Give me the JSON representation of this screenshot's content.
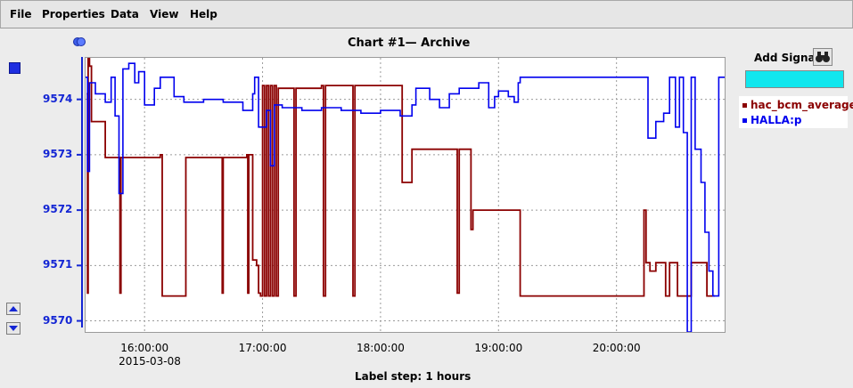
{
  "menubar": {
    "items": [
      {
        "label": "File"
      },
      {
        "label": "Properties"
      },
      {
        "label": "Data"
      },
      {
        "label": "View"
      },
      {
        "label": "Help"
      }
    ]
  },
  "chart": {
    "title": "Chart #1— Archive"
  },
  "right_panel": {
    "add_signal_label": "Add Signal",
    "signal_input_value": ""
  },
  "colors": {
    "hac_bcm_average": "#8b0000",
    "halla_p": "#0000ee",
    "axis": "#1426d4",
    "input_bg": "#11e7ee"
  },
  "chart_data": {
    "type": "line",
    "title": "Chart #1— Archive",
    "xlabel": "Label step: 1 hours",
    "x_tick_labels": [
      "16:00:00",
      "17:00:00",
      "18:00:00",
      "19:00:00",
      "20:00:00"
    ],
    "x_date_label": "2015-03-08",
    "y_tick_labels": [
      "9570",
      "9571",
      "9572",
      "9573",
      "9574"
    ],
    "xlim": [
      "15:30:00",
      "20:55:00"
    ],
    "ylim": [
      9569.8,
      9574.75
    ],
    "grid": true,
    "legend_position": "right",
    "series": [
      {
        "name": "hac_bcm_average",
        "points": [
          [
            "15:30:30",
            9574.1
          ],
          [
            "15:31:00",
            9570.5
          ],
          [
            "15:31:20",
            9574.75
          ],
          [
            "15:32:00",
            9574.6
          ],
          [
            "15:33:00",
            9573.6
          ],
          [
            "15:38:00",
            9573.6
          ],
          [
            "15:40:00",
            9572.95
          ],
          [
            "15:47:00",
            9572.95
          ],
          [
            "15:47:30",
            9570.5
          ],
          [
            "15:48:00",
            9572.95
          ],
          [
            "16:08:00",
            9573.0
          ],
          [
            "16:09:00",
            9570.45
          ],
          [
            "16:20:00",
            9570.45
          ],
          [
            "16:21:00",
            9572.95
          ],
          [
            "16:39:00",
            9572.95
          ],
          [
            "16:39:30",
            9570.5
          ],
          [
            "16:40:00",
            9572.95
          ],
          [
            "16:52:00",
            9573.0
          ],
          [
            "16:52:30",
            9570.5
          ],
          [
            "16:53:00",
            9573.0
          ],
          [
            "16:54:00",
            9573.0
          ],
          [
            "16:55:00",
            9571.1
          ],
          [
            "16:57:00",
            9571.0
          ],
          [
            "16:58:00",
            9570.5
          ],
          [
            "16:59:00",
            9570.45
          ],
          [
            "17:00:00",
            9574.25
          ],
          [
            "17:01:00",
            9570.45
          ],
          [
            "17:02:00",
            9574.25
          ],
          [
            "17:03:00",
            9570.45
          ],
          [
            "17:04:00",
            9574.25
          ],
          [
            "17:05:00",
            9570.45
          ],
          [
            "17:06:00",
            9574.25
          ],
          [
            "17:07:00",
            9570.45
          ],
          [
            "17:08:00",
            9574.2
          ],
          [
            "17:15:00",
            9574.2
          ],
          [
            "17:16:00",
            9570.45
          ],
          [
            "17:17:00",
            9574.2
          ],
          [
            "17:30:00",
            9574.25
          ],
          [
            "17:31:00",
            9570.45
          ],
          [
            "17:32:00",
            9574.25
          ],
          [
            "17:45:00",
            9574.25
          ],
          [
            "17:46:00",
            9570.45
          ],
          [
            "17:47:00",
            9574.25
          ],
          [
            "18:10:00",
            9574.25
          ],
          [
            "18:11:00",
            9572.5
          ],
          [
            "18:15:00",
            9572.5
          ],
          [
            "18:16:00",
            9573.1
          ],
          [
            "18:38:00",
            9573.1
          ],
          [
            "18:39:00",
            9570.5
          ],
          [
            "18:40:00",
            9573.1
          ],
          [
            "18:45:00",
            9573.1
          ],
          [
            "18:46:00",
            9571.65
          ],
          [
            "18:47:00",
            9572.0
          ],
          [
            "19:10:00",
            9572.0
          ],
          [
            "19:11:00",
            9570.45
          ],
          [
            "20:13:00",
            9570.45
          ],
          [
            "20:14:00",
            9572.0
          ],
          [
            "20:15:00",
            9571.05
          ],
          [
            "20:17:00",
            9570.9
          ],
          [
            "20:20:00",
            9571.05
          ],
          [
            "20:24:00",
            9571.05
          ],
          [
            "20:25:00",
            9570.45
          ],
          [
            "20:27:00",
            9571.05
          ],
          [
            "20:30:00",
            9571.05
          ],
          [
            "20:31:00",
            9570.45
          ],
          [
            "20:37:00",
            9570.45
          ],
          [
            "20:38:00",
            9571.05
          ],
          [
            "20:45:00",
            9571.05
          ],
          [
            "20:46:00",
            9570.45
          ],
          [
            "20:50:00",
            9570.45
          ]
        ]
      },
      {
        "name": "HALLA:p",
        "points": [
          [
            "15:30:00",
            9574.4
          ],
          [
            "15:31:00",
            9572.7
          ],
          [
            "15:32:00",
            9574.3
          ],
          [
            "15:35:00",
            9574.1
          ],
          [
            "15:40:00",
            9573.95
          ],
          [
            "15:43:00",
            9574.4
          ],
          [
            "15:45:00",
            9573.7
          ],
          [
            "15:47:00",
            9572.3
          ],
          [
            "15:49:00",
            9574.55
          ],
          [
            "15:52:00",
            9574.65
          ],
          [
            "15:55:00",
            9574.3
          ],
          [
            "15:57:00",
            9574.5
          ],
          [
            "16:00:00",
            9573.9
          ],
          [
            "16:05:00",
            9574.2
          ],
          [
            "16:08:00",
            9574.4
          ],
          [
            "16:14:00",
            9574.4
          ],
          [
            "16:15:00",
            9574.05
          ],
          [
            "16:20:00",
            9573.95
          ],
          [
            "16:30:00",
            9574.0
          ],
          [
            "16:40:00",
            9573.95
          ],
          [
            "16:50:00",
            9573.8
          ],
          [
            "16:55:00",
            9574.1
          ],
          [
            "16:56:00",
            9574.4
          ],
          [
            "16:58:00",
            9573.5
          ],
          [
            "17:02:00",
            9573.8
          ],
          [
            "17:04:00",
            9572.8
          ],
          [
            "17:06:00",
            9573.9
          ],
          [
            "17:10:00",
            9573.85
          ],
          [
            "17:20:00",
            9573.8
          ],
          [
            "17:30:00",
            9573.85
          ],
          [
            "17:40:00",
            9573.8
          ],
          [
            "17:50:00",
            9573.75
          ],
          [
            "18:00:00",
            9573.8
          ],
          [
            "18:10:00",
            9573.7
          ],
          [
            "18:16:00",
            9573.9
          ],
          [
            "18:18:00",
            9574.2
          ],
          [
            "18:22:00",
            9574.2
          ],
          [
            "18:25:00",
            9574.0
          ],
          [
            "18:30:00",
            9573.85
          ],
          [
            "18:35:00",
            9574.1
          ],
          [
            "18:40:00",
            9574.2
          ],
          [
            "18:50:00",
            9574.3
          ],
          [
            "18:55:00",
            9573.85
          ],
          [
            "18:58:00",
            9574.05
          ],
          [
            "19:00:00",
            9574.15
          ],
          [
            "19:05:00",
            9574.05
          ],
          [
            "19:08:00",
            9573.95
          ],
          [
            "19:10:00",
            9574.3
          ],
          [
            "19:11:00",
            9574.4
          ],
          [
            "20:15:00",
            9574.4
          ],
          [
            "20:16:00",
            9573.3
          ],
          [
            "20:20:00",
            9573.6
          ],
          [
            "20:24:00",
            9573.75
          ],
          [
            "20:27:00",
            9574.4
          ],
          [
            "20:30:00",
            9573.5
          ],
          [
            "20:32:00",
            9574.4
          ],
          [
            "20:34:00",
            9573.4
          ],
          [
            "20:36:00",
            9569.8
          ],
          [
            "20:38:00",
            9574.4
          ],
          [
            "20:40:00",
            9573.1
          ],
          [
            "20:43:00",
            9572.5
          ],
          [
            "20:45:00",
            9571.6
          ],
          [
            "20:47:00",
            9570.9
          ],
          [
            "20:49:00",
            9570.45
          ],
          [
            "20:51:00",
            9570.45
          ],
          [
            "20:52:00",
            9574.4
          ],
          [
            "20:55:00",
            9574.4
          ]
        ]
      }
    ]
  }
}
